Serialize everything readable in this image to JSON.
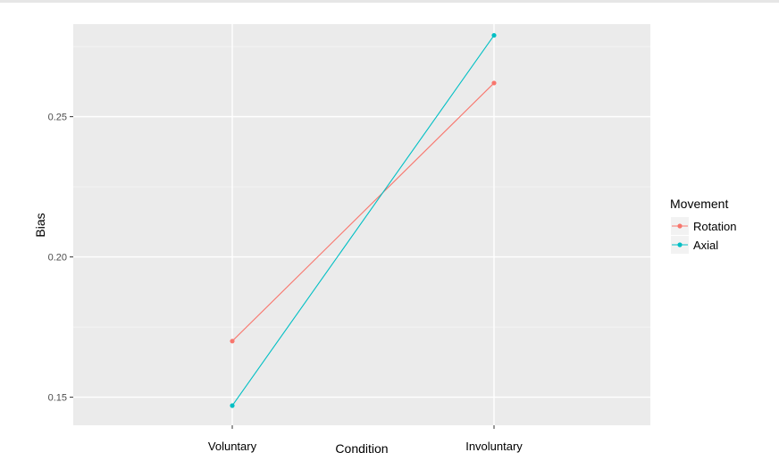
{
  "chart_data": {
    "type": "line",
    "title": "",
    "xlabel": "Condition",
    "ylabel": "Bias",
    "categories": [
      "Voluntary",
      "Involuntary"
    ],
    "ylim": [
      0.14,
      0.283
    ],
    "yticks": [
      0.15,
      0.2,
      0.25
    ],
    "ytick_labels": [
      "0.15",
      "0.20",
      "0.25"
    ],
    "grid": true,
    "legend": {
      "title": "Movement",
      "position": "right"
    },
    "series": [
      {
        "name": "Rotation",
        "color": "#F8766D",
        "values": [
          0.17,
          0.262
        ]
      },
      {
        "name": "Axial",
        "color": "#00BFC4",
        "values": [
          0.147,
          0.279
        ]
      }
    ],
    "colors": {
      "panel_background": "#EBEBEB",
      "grid_major": "#FFFFFF",
      "tick_label": "#4D4D4D",
      "axis_title": "#000000"
    }
  }
}
